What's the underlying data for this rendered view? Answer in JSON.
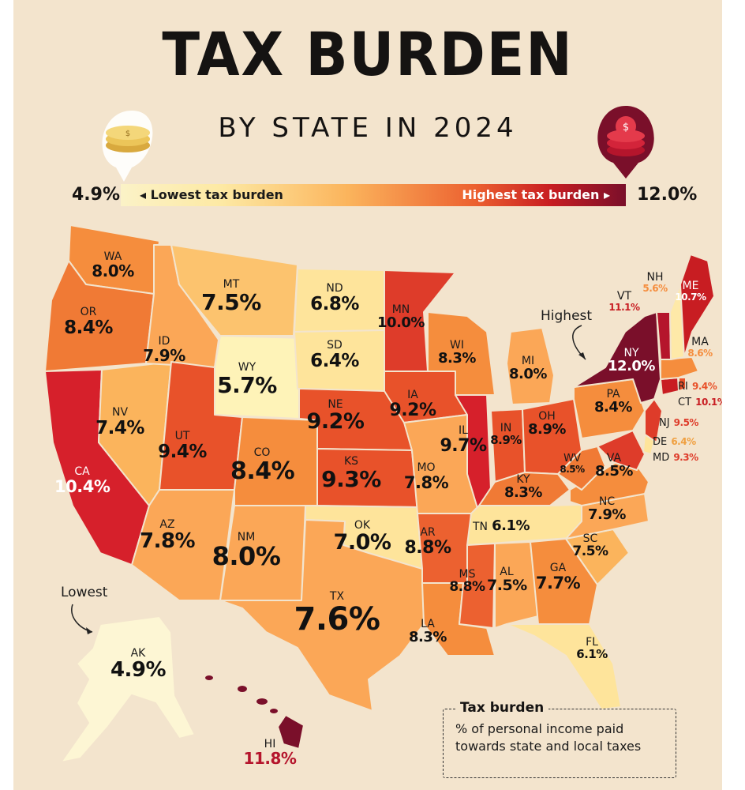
{
  "title": "TAX BURDEN",
  "subtitle": "BY STATE IN 2024",
  "legend": {
    "min_value": "4.9%",
    "max_value": "12.0%",
    "low_label": "Lowest tax burden",
    "high_label": "Highest tax burden",
    "low_color": "#fbf2c7",
    "high_color": "#7a0f2a"
  },
  "annotations": {
    "highest": "Highest",
    "lowest": "Lowest"
  },
  "info_box": {
    "title": "Tax burden",
    "text": "% of personal income paid towards state and local taxes"
  },
  "states": [
    {
      "abbr": "WA",
      "value": "8.0%"
    },
    {
      "abbr": "OR",
      "value": "8.4%"
    },
    {
      "abbr": "CA",
      "value": "10.4%"
    },
    {
      "abbr": "NV",
      "value": "7.4%"
    },
    {
      "abbr": "ID",
      "value": "7.9%"
    },
    {
      "abbr": "MT",
      "value": "7.5%"
    },
    {
      "abbr": "WY",
      "value": "5.7%"
    },
    {
      "abbr": "UT",
      "value": "9.4%"
    },
    {
      "abbr": "AZ",
      "value": "7.8%"
    },
    {
      "abbr": "CO",
      "value": "8.4%"
    },
    {
      "abbr": "NM",
      "value": "8.0%"
    },
    {
      "abbr": "ND",
      "value": "6.8%"
    },
    {
      "abbr": "SD",
      "value": "6.4%"
    },
    {
      "abbr": "NE",
      "value": "9.2%"
    },
    {
      "abbr": "KS",
      "value": "9.3%"
    },
    {
      "abbr": "OK",
      "value": "7.0%"
    },
    {
      "abbr": "TX",
      "value": "7.6%"
    },
    {
      "abbr": "MN",
      "value": "10.0%"
    },
    {
      "abbr": "IA",
      "value": "9.2%"
    },
    {
      "abbr": "MO",
      "value": "7.8%"
    },
    {
      "abbr": "AR",
      "value": "8.8%"
    },
    {
      "abbr": "LA",
      "value": "8.3%"
    },
    {
      "abbr": "WI",
      "value": "8.3%"
    },
    {
      "abbr": "IL",
      "value": "9.7%"
    },
    {
      "abbr": "MI",
      "value": "8.0%"
    },
    {
      "abbr": "IN",
      "value": "8.9%"
    },
    {
      "abbr": "OH",
      "value": "8.9%"
    },
    {
      "abbr": "KY",
      "value": "8.3%"
    },
    {
      "abbr": "TN",
      "value": "6.1%"
    },
    {
      "abbr": "MS",
      "value": "8.8%"
    },
    {
      "abbr": "AL",
      "value": "7.5%"
    },
    {
      "abbr": "GA",
      "value": "7.7%"
    },
    {
      "abbr": "FL",
      "value": "6.1%"
    },
    {
      "abbr": "SC",
      "value": "7.5%"
    },
    {
      "abbr": "NC",
      "value": "7.9%"
    },
    {
      "abbr": "VA",
      "value": "8.5%"
    },
    {
      "abbr": "WV",
      "value": "8.5%"
    },
    {
      "abbr": "PA",
      "value": "8.4%"
    },
    {
      "abbr": "NY",
      "value": "12.0%"
    },
    {
      "abbr": "VT",
      "value": "11.1%"
    },
    {
      "abbr": "NH",
      "value": "5.6%"
    },
    {
      "abbr": "ME",
      "value": "10.7%"
    },
    {
      "abbr": "MA",
      "value": "8.6%"
    },
    {
      "abbr": "RI",
      "value": "9.4%"
    },
    {
      "abbr": "CT",
      "value": "10.1%"
    },
    {
      "abbr": "NJ",
      "value": "9.5%"
    },
    {
      "abbr": "DE",
      "value": "6.4%"
    },
    {
      "abbr": "MD",
      "value": "9.3%"
    },
    {
      "abbr": "AK",
      "value": "4.9%"
    },
    {
      "abbr": "HI",
      "value": "11.8%"
    }
  ]
}
